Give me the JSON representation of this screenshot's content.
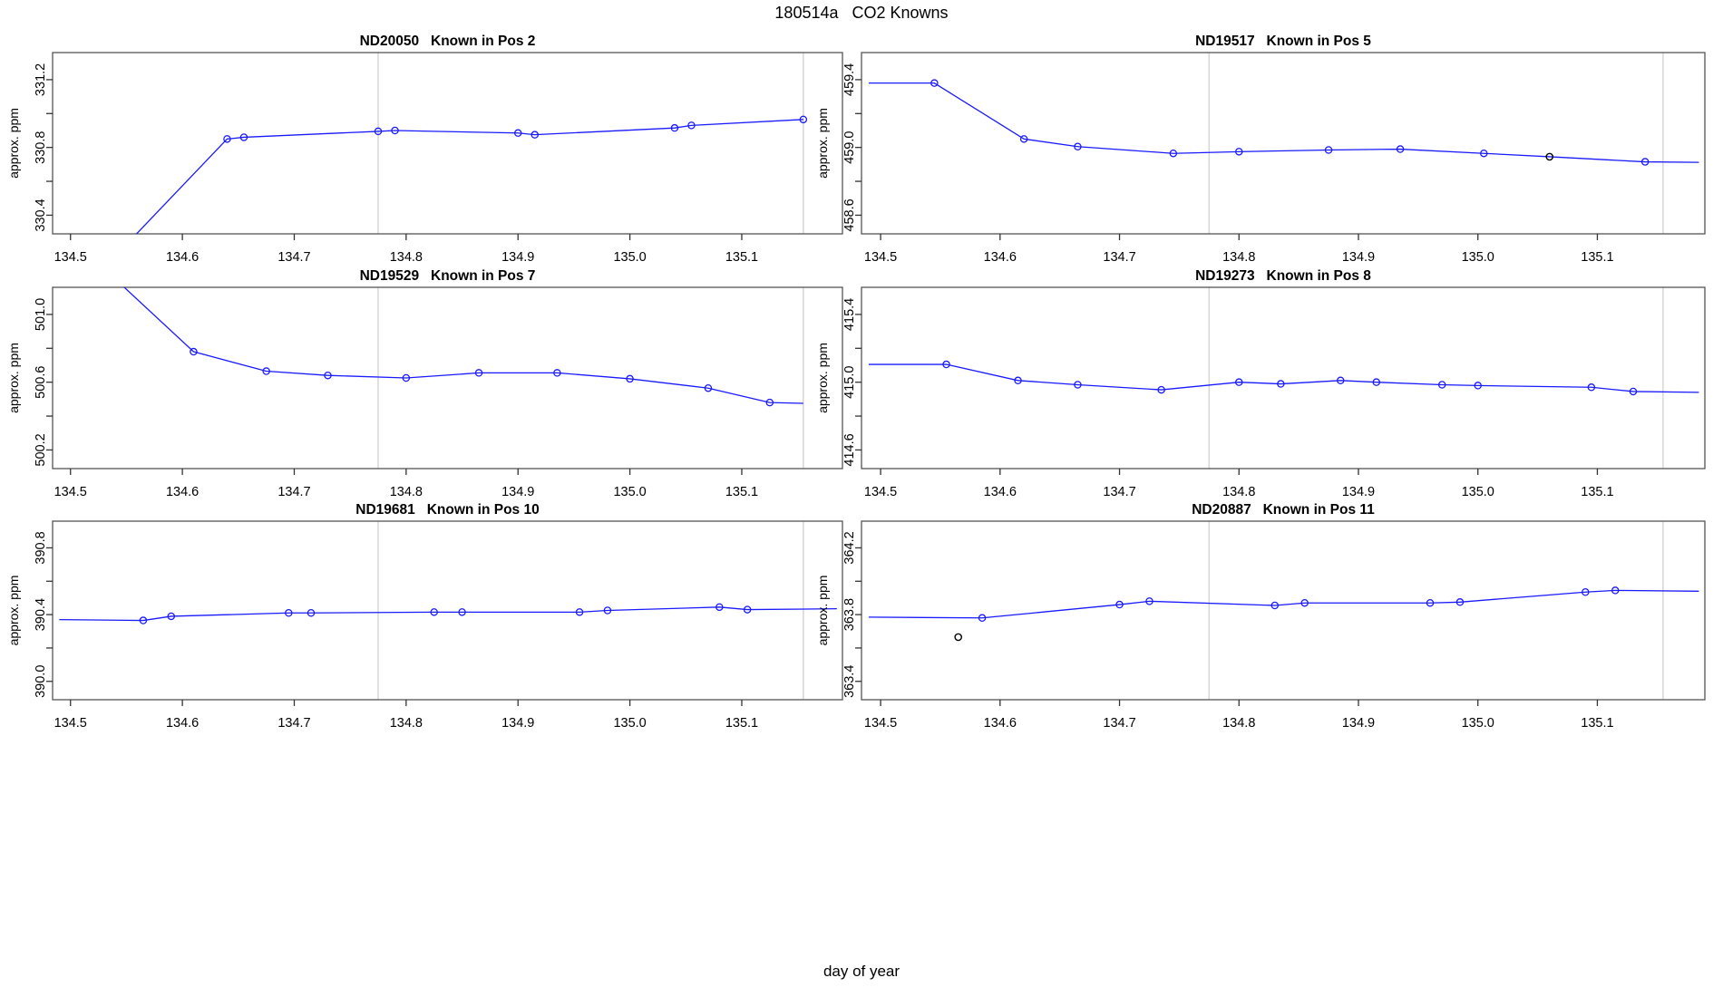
{
  "title": "180514a   CO2 Knowns",
  "xlabel": "day of year",
  "ylabel": "approx. ppm",
  "colors": {
    "line": "#1a1aff",
    "point": "#1a1aff",
    "outlier_point": "#000000",
    "refline": "#d8d8d8",
    "box": "#555555",
    "tick": "#333333",
    "text": "#000000",
    "background": "#ffffff"
  },
  "axes": {
    "xlim": [
      134.484,
      135.19
    ],
    "xticks": [
      134.5,
      134.6,
      134.7,
      134.8,
      134.9,
      135.0,
      135.1
    ],
    "reflines_x": [
      134.775,
      135.155
    ]
  },
  "chart_data": [
    {
      "type": "line",
      "title": "ND20050   Known in Pos 2",
      "instrument": "ND20050",
      "position": "Pos 2",
      "ylabel": "approx. ppm",
      "ylim": [
        330.29,
        331.36
      ],
      "yticks": [
        330.4,
        330.6,
        330.8,
        331.0,
        331.2
      ],
      "ytick_labeled": [
        330.4,
        330.8,
        331.2
      ],
      "line": [
        [
          134.52,
          330.02
        ],
        [
          134.64,
          330.85
        ],
        [
          134.655,
          330.86
        ],
        [
          134.775,
          330.895
        ],
        [
          134.79,
          330.9
        ],
        [
          134.9,
          330.885
        ],
        [
          134.915,
          330.875
        ],
        [
          135.04,
          330.915
        ],
        [
          135.055,
          330.93
        ],
        [
          135.155,
          330.965
        ]
      ],
      "points": [
        [
          134.64,
          330.85
        ],
        [
          134.655,
          330.86
        ],
        [
          134.775,
          330.895
        ],
        [
          134.79,
          330.9
        ],
        [
          134.9,
          330.885
        ],
        [
          134.915,
          330.875
        ],
        [
          135.04,
          330.915
        ],
        [
          135.055,
          330.93
        ],
        [
          135.155,
          330.965
        ]
      ],
      "outlier_points": []
    },
    {
      "type": "line",
      "title": "ND19517   Known in Pos 5",
      "instrument": "ND19517",
      "position": "Pos 5",
      "ylabel": "approx. ppm",
      "ylim": [
        458.49,
        459.56
      ],
      "yticks": [
        458.6,
        458.8,
        459.0,
        459.2,
        459.4
      ],
      "ytick_labeled": [
        458.6,
        459.0,
        459.4
      ],
      "line": [
        [
          134.49,
          459.38
        ],
        [
          134.545,
          459.38
        ],
        [
          134.62,
          459.05
        ],
        [
          134.665,
          459.005
        ],
        [
          134.745,
          458.965
        ],
        [
          134.8,
          458.975
        ],
        [
          134.875,
          458.985
        ],
        [
          134.935,
          458.99
        ],
        [
          135.005,
          458.965
        ],
        [
          135.06,
          458.945
        ],
        [
          135.14,
          458.915
        ],
        [
          135.185,
          458.912
        ]
      ],
      "points": [
        [
          134.545,
          459.38
        ],
        [
          134.62,
          459.05
        ],
        [
          134.665,
          459.005
        ],
        [
          134.745,
          458.965
        ],
        [
          134.8,
          458.975
        ],
        [
          134.875,
          458.985
        ],
        [
          134.935,
          458.99
        ],
        [
          135.005,
          458.965
        ],
        [
          135.14,
          458.915
        ]
      ],
      "outlier_points": [
        [
          135.06,
          458.945
        ]
      ]
    },
    {
      "type": "line",
      "title": "ND19529   Known in Pos 7",
      "instrument": "ND19529",
      "position": "Pos 7",
      "ylabel": "approx. ppm",
      "ylim": [
        500.09,
        501.16
      ],
      "yticks": [
        500.2,
        500.4,
        500.6,
        500.8,
        501.0
      ],
      "ytick_labeled": [
        500.2,
        500.6,
        501.0
      ],
      "line": [
        [
          134.535,
          501.24
        ],
        [
          134.61,
          500.78
        ],
        [
          134.675,
          500.665
        ],
        [
          134.73,
          500.64
        ],
        [
          134.8,
          500.625
        ],
        [
          134.865,
          500.655
        ],
        [
          134.935,
          500.655
        ],
        [
          135.0,
          500.62
        ],
        [
          135.07,
          500.565
        ],
        [
          135.125,
          500.48
        ],
        [
          135.155,
          500.475
        ]
      ],
      "points": [
        [
          134.61,
          500.78
        ],
        [
          134.675,
          500.665
        ],
        [
          134.73,
          500.64
        ],
        [
          134.8,
          500.625
        ],
        [
          134.865,
          500.655
        ],
        [
          134.935,
          500.655
        ],
        [
          135.0,
          500.62
        ],
        [
          135.07,
          500.565
        ],
        [
          135.125,
          500.48
        ]
      ],
      "outlier_points": []
    },
    {
      "type": "line",
      "title": "ND19273   Known in Pos 8",
      "instrument": "ND19273",
      "position": "Pos 8",
      "ylabel": "approx. ppm",
      "ylim": [
        414.49,
        415.56
      ],
      "yticks": [
        414.6,
        414.8,
        415.0,
        415.2,
        415.4
      ],
      "ytick_labeled": [
        414.6,
        415.0,
        415.4
      ],
      "line": [
        [
          134.49,
          415.105
        ],
        [
          134.555,
          415.105
        ],
        [
          134.615,
          415.01
        ],
        [
          134.665,
          414.985
        ],
        [
          134.735,
          414.955
        ],
        [
          134.8,
          415.0
        ],
        [
          134.835,
          414.99
        ],
        [
          134.885,
          415.01
        ],
        [
          134.915,
          415.0
        ],
        [
          134.97,
          414.985
        ],
        [
          135.0,
          414.98
        ],
        [
          135.095,
          414.97
        ],
        [
          135.13,
          414.945
        ],
        [
          135.185,
          414.94
        ]
      ],
      "points": [
        [
          134.555,
          415.105
        ],
        [
          134.615,
          415.01
        ],
        [
          134.665,
          414.985
        ],
        [
          134.735,
          414.955
        ],
        [
          134.8,
          415.0
        ],
        [
          134.835,
          414.99
        ],
        [
          134.885,
          415.01
        ],
        [
          134.915,
          415.0
        ],
        [
          134.97,
          414.985
        ],
        [
          135.0,
          414.98
        ],
        [
          135.095,
          414.97
        ],
        [
          135.13,
          414.945
        ]
      ],
      "outlier_points": []
    },
    {
      "type": "line",
      "title": "ND19681   Known in Pos 10",
      "instrument": "ND19681",
      "position": "Pos 10",
      "ylabel": "approx. ppm",
      "ylim": [
        389.89,
        390.96
      ],
      "yticks": [
        390.0,
        390.2,
        390.4,
        390.6,
        390.8
      ],
      "ytick_labeled": [
        390.0,
        390.4,
        390.8
      ],
      "line": [
        [
          134.49,
          390.37
        ],
        [
          134.565,
          390.365
        ],
        [
          134.59,
          390.39
        ],
        [
          134.695,
          390.41
        ],
        [
          134.715,
          390.41
        ],
        [
          134.825,
          390.415
        ],
        [
          134.85,
          390.415
        ],
        [
          134.955,
          390.415
        ],
        [
          134.98,
          390.425
        ],
        [
          135.08,
          390.445
        ],
        [
          135.105,
          390.43
        ],
        [
          135.185,
          390.435
        ]
      ],
      "points": [
        [
          134.565,
          390.365
        ],
        [
          134.59,
          390.39
        ],
        [
          134.695,
          390.41
        ],
        [
          134.715,
          390.41
        ],
        [
          134.825,
          390.415
        ],
        [
          134.85,
          390.415
        ],
        [
          134.955,
          390.415
        ],
        [
          134.98,
          390.425
        ],
        [
          135.08,
          390.445
        ],
        [
          135.105,
          390.43
        ]
      ],
      "outlier_points": []
    },
    {
      "type": "line",
      "title": "ND20887   Known in Pos 11",
      "instrument": "ND20887",
      "position": "Pos 11",
      "ylabel": "approx. ppm",
      "ylim": [
        363.29,
        364.36
      ],
      "yticks": [
        363.4,
        363.6,
        363.8,
        364.0,
        364.2
      ],
      "ytick_labeled": [
        363.4,
        363.8,
        364.2
      ],
      "line": [
        [
          134.49,
          363.785
        ],
        [
          134.585,
          363.78
        ],
        [
          134.7,
          363.86
        ],
        [
          134.725,
          363.88
        ],
        [
          134.83,
          363.855
        ],
        [
          134.855,
          363.87
        ],
        [
          134.96,
          363.87
        ],
        [
          134.985,
          363.875
        ],
        [
          135.09,
          363.935
        ],
        [
          135.115,
          363.945
        ],
        [
          135.185,
          363.94
        ]
      ],
      "points": [
        [
          134.585,
          363.78
        ],
        [
          134.7,
          363.86
        ],
        [
          134.725,
          363.88
        ],
        [
          134.83,
          363.855
        ],
        [
          134.855,
          363.87
        ],
        [
          134.96,
          363.87
        ],
        [
          134.985,
          363.875
        ],
        [
          135.09,
          363.935
        ],
        [
          135.115,
          363.945
        ]
      ],
      "outlier_points": [
        [
          134.565,
          363.665
        ]
      ]
    }
  ]
}
